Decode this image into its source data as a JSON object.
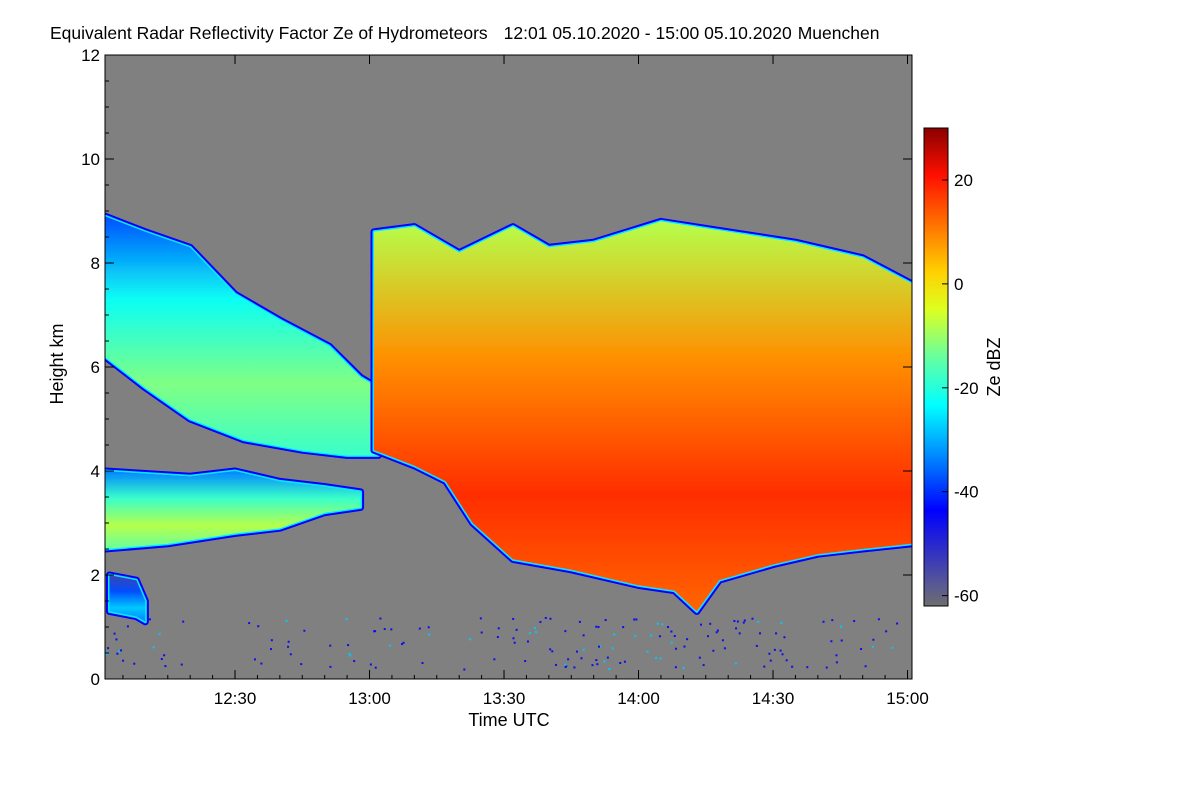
{
  "chart_data": {
    "type": "heatmap",
    "title": "Equivalent Radar Reflectivity Factor Ze of Hydrometeors",
    "time_range": "12:01 05.10.2020 - 15:00 05.10.2020",
    "location": "Muenchen",
    "xlabel": "Time UTC",
    "ylabel": "Height km",
    "colorbar_label": "Ze dBZ",
    "x_range_minutes": [
      721,
      901
    ],
    "y_range_km": [
      0,
      12
    ],
    "colorbar_range_dbz": [
      -62,
      30
    ],
    "x_ticks": [
      {
        "minute": 750,
        "label": "12:30"
      },
      {
        "minute": 780,
        "label": "13:00"
      },
      {
        "minute": 810,
        "label": "13:30"
      },
      {
        "minute": 840,
        "label": "14:00"
      },
      {
        "minute": 870,
        "label": "14:30"
      },
      {
        "minute": 900,
        "label": "15:00"
      }
    ],
    "y_ticks": [
      {
        "value": 0,
        "label": "0"
      },
      {
        "value": 2,
        "label": "2"
      },
      {
        "value": 4,
        "label": "4"
      },
      {
        "value": 6,
        "label": "6"
      },
      {
        "value": 8,
        "label": "8"
      },
      {
        "value": 10,
        "label": "10"
      },
      {
        "value": 12,
        "label": "12"
      }
    ],
    "colorbar_ticks": [
      {
        "value": 20,
        "label": "20"
      },
      {
        "value": 0,
        "label": "0"
      },
      {
        "value": -20,
        "label": "-20"
      },
      {
        "value": -40,
        "label": "-40"
      },
      {
        "value": -60,
        "label": "-60"
      }
    ],
    "echo_layers": [
      {
        "name": "upper-cloud-left",
        "top_km": [
          [
            721,
            8.9
          ],
          [
            730,
            8.6
          ],
          [
            740,
            8.3
          ],
          [
            750,
            7.4
          ],
          [
            760,
            6.9
          ],
          [
            771,
            6.4
          ],
          [
            778,
            5.8
          ],
          [
            782,
            5.6
          ]
        ],
        "base_km": [
          [
            721,
            6.2
          ],
          [
            730,
            5.6
          ],
          [
            740,
            5.0
          ],
          [
            752,
            4.6
          ],
          [
            765,
            4.4
          ],
          [
            775,
            4.3
          ],
          [
            782,
            4.3
          ]
        ],
        "peak_dbz": -12
      },
      {
        "name": "low-cloud-left",
        "top_km": [
          [
            721,
            4.0
          ],
          [
            740,
            3.9
          ],
          [
            750,
            4.0
          ],
          [
            760,
            3.8
          ],
          [
            770,
            3.7
          ],
          [
            778,
            3.6
          ]
        ],
        "base_km": [
          [
            721,
            2.5
          ],
          [
            735,
            2.6
          ],
          [
            750,
            2.8
          ],
          [
            760,
            2.9
          ],
          [
            770,
            3.2
          ],
          [
            778,
            3.3
          ]
        ],
        "peak_dbz": -8
      },
      {
        "name": "boundary-layer-echo",
        "top_km": [
          [
            722,
            2.0
          ],
          [
            728,
            1.9
          ],
          [
            730,
            1.5
          ]
        ],
        "base_km": [
          [
            722,
            1.3
          ],
          [
            728,
            1.2
          ],
          [
            730,
            1.1
          ]
        ],
        "peak_dbz": -28
      },
      {
        "name": "main-system",
        "top_km": [
          [
            781,
            8.6
          ],
          [
            790,
            8.7
          ],
          [
            800,
            8.2
          ],
          [
            812,
            8.7
          ],
          [
            820,
            8.3
          ],
          [
            830,
            8.4
          ],
          [
            845,
            8.8
          ],
          [
            860,
            8.6
          ],
          [
            875,
            8.4
          ],
          [
            890,
            8.1
          ],
          [
            901,
            7.6
          ]
        ],
        "base_km": [
          [
            781,
            4.4
          ],
          [
            790,
            4.1
          ],
          [
            797,
            3.8
          ],
          [
            803,
            3.0
          ],
          [
            812,
            2.3
          ],
          [
            825,
            2.1
          ],
          [
            840,
            1.8
          ],
          [
            848,
            1.7
          ],
          [
            853,
            1.3
          ],
          [
            858,
            1.9
          ],
          [
            870,
            2.2
          ],
          [
            880,
            2.4
          ],
          [
            890,
            2.5
          ],
          [
            901,
            2.6
          ]
        ],
        "peak_dbz": 18
      }
    ]
  }
}
